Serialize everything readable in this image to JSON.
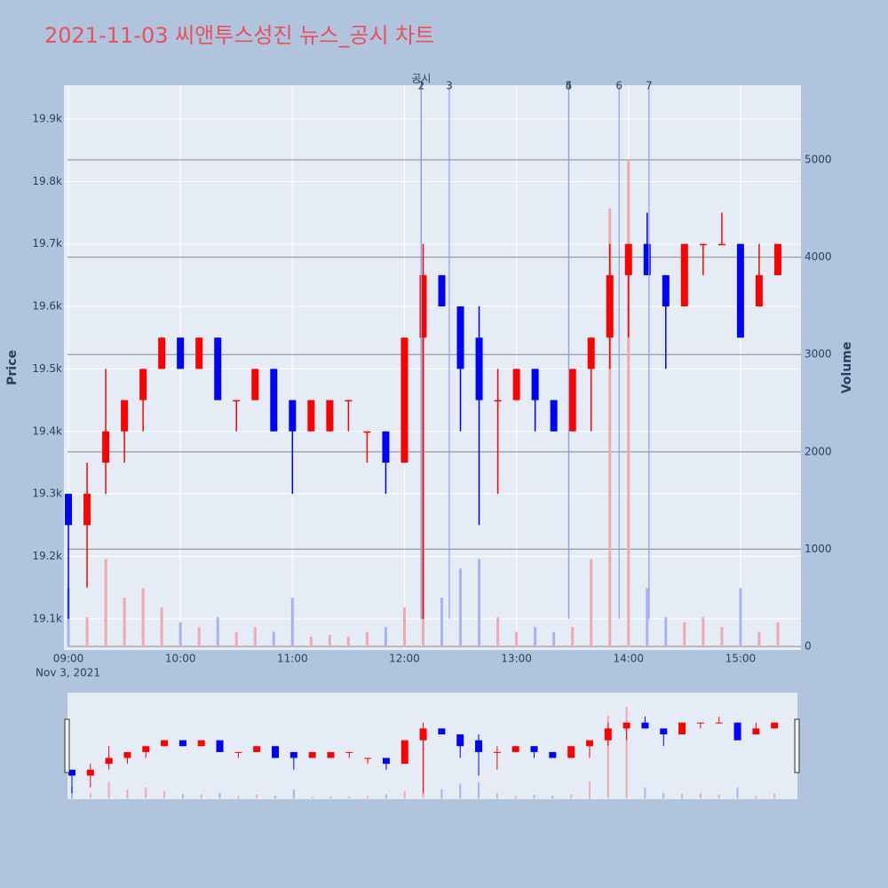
{
  "chart_data": {
    "type": "candlestick",
    "title": "2021-11-03 씨앤투스성진 뉴스_공시 차트",
    "y_title": "Price",
    "y2_title": "Volume",
    "x": [
      "2021-11-03T09:00",
      "2021-11-03T09:10",
      "2021-11-03T09:20",
      "2021-11-03T09:30",
      "2021-11-03T09:40",
      "2021-11-03T09:50",
      "2021-11-03T10:00",
      "2021-11-03T10:10",
      "2021-11-03T10:20",
      "2021-11-03T10:30",
      "2021-11-03T10:40",
      "2021-11-03T10:50",
      "2021-11-03T11:00",
      "2021-11-03T11:10",
      "2021-11-03T11:20",
      "2021-11-03T11:30",
      "2021-11-03T11:40",
      "2021-11-03T11:50",
      "2021-11-03T12:00",
      "2021-11-03T12:10",
      "2021-11-03T12:20",
      "2021-11-03T12:30",
      "2021-11-03T12:40",
      "2021-11-03T12:50",
      "2021-11-03T13:00",
      "2021-11-03T13:10",
      "2021-11-03T13:20",
      "2021-11-03T13:30",
      "2021-11-03T13:40",
      "2021-11-03T13:50",
      "2021-11-03T14:00",
      "2021-11-03T14:10",
      "2021-11-03T14:20",
      "2021-11-03T14:30",
      "2021-11-03T14:40",
      "2021-11-03T14:50",
      "2021-11-03T15:00",
      "2021-11-03T15:10",
      "2021-11-03T15:20"
    ],
    "open": [
      19300,
      19250,
      19350,
      19400,
      19450,
      19500,
      19550,
      19500,
      19550,
      19450,
      19450,
      19500,
      19450,
      19400,
      19400,
      19450,
      19400,
      19400,
      19350,
      19550,
      19650,
      19600,
      19550,
      19450,
      19450,
      19500,
      19450,
      19400,
      19500,
      19550,
      19650,
      19700,
      19650,
      19600,
      19700,
      19700,
      19700,
      19600,
      19650
    ],
    "high": [
      19300,
      19350,
      19500,
      19450,
      19500,
      19550,
      19550,
      19550,
      19550,
      19450,
      19500,
      19500,
      19450,
      19450,
      19450,
      19450,
      19400,
      19400,
      19550,
      19700,
      19650,
      19600,
      19600,
      19500,
      19500,
      19500,
      19450,
      19500,
      19550,
      19700,
      19700,
      19750,
      19650,
      19700,
      19700,
      19750,
      19700,
      19700,
      19700
    ],
    "low": [
      19100,
      19150,
      19300,
      19350,
      19400,
      19500,
      19500,
      19500,
      19450,
      19400,
      19450,
      19400,
      19300,
      19400,
      19400,
      19400,
      19350,
      19300,
      19350,
      19100,
      19600,
      19400,
      19250,
      19300,
      19450,
      19400,
      19400,
      19400,
      19400,
      19500,
      19550,
      19650,
      19500,
      19600,
      19650,
      19700,
      19550,
      19600,
      19650
    ],
    "close": [
      19250,
      19300,
      19400,
      19450,
      19500,
      19550,
      19500,
      19550,
      19450,
      19450,
      19500,
      19400,
      19400,
      19450,
      19450,
      19450,
      19400,
      19350,
      19550,
      19650,
      19600,
      19500,
      19450,
      19450,
      19500,
      19450,
      19400,
      19500,
      19550,
      19650,
      19700,
      19650,
      19600,
      19700,
      19700,
      19700,
      19550,
      19650,
      19700
    ],
    "volume": [
      600,
      300,
      900,
      500,
      600,
      400,
      250,
      200,
      300,
      150,
      200,
      150,
      500,
      100,
      120,
      100,
      150,
      200,
      400,
      3800,
      500,
      800,
      900,
      300,
      150,
      200,
      150,
      200,
      900,
      4500,
      5000,
      600,
      300,
      250,
      300,
      200,
      600,
      150,
      250
    ],
    "increasing_color": "#ff0000",
    "decreasing_color": "#0000ff",
    "volume_increasing_color": "#f2a8b0",
    "volume_decreasing_color": "#a8b4f0",
    "xlim": [
      "2021-11-03T08:57:36",
      "2021-11-03T15:32:24"
    ],
    "xticks": [
      {
        "value": "2021-11-03T09:00",
        "label": "09:00"
      },
      {
        "value": "2021-11-03T10:00",
        "label": "10:00"
      },
      {
        "value": "2021-11-03T11:00",
        "label": "11:00"
      },
      {
        "value": "2021-11-03T12:00",
        "label": "12:00"
      },
      {
        "value": "2021-11-03T13:00",
        "label": "13:00"
      },
      {
        "value": "2021-11-03T14:00",
        "label": "14:00"
      },
      {
        "value": "2021-11-03T15:00",
        "label": "15:00"
      }
    ],
    "x_date_label": "Nov 3, 2021",
    "ylim": [
      19050,
      19954
    ],
    "yticks": [
      {
        "value": 19100,
        "label": "19.1k"
      },
      {
        "value": 19200,
        "label": "19.2k"
      },
      {
        "value": 19300,
        "label": "19.3k"
      },
      {
        "value": 19400,
        "label": "19.4k"
      },
      {
        "value": 19500,
        "label": "19.5k"
      },
      {
        "value": 19600,
        "label": "19.6k"
      },
      {
        "value": 19700,
        "label": "19.7k"
      },
      {
        "value": 19800,
        "label": "19.8k"
      },
      {
        "value": 19900,
        "label": "19.9k"
      }
    ],
    "y2lim": [
      -36,
      5766
    ],
    "y2ticks": [
      0,
      1000,
      2000,
      3000,
      4000,
      5000
    ],
    "annotation_title": "공시",
    "annotations": [
      {
        "x": "2021-11-03T12:09",
        "text": "1"
      },
      {
        "x": "2021-11-03T12:09",
        "text": "2"
      },
      {
        "x": "2021-11-03T12:24",
        "text": "3"
      },
      {
        "x": "2021-11-03T13:28",
        "text": "4"
      },
      {
        "x": "2021-11-03T13:28",
        "text": "5"
      },
      {
        "x": "2021-11-03T13:55",
        "text": "6"
      },
      {
        "x": "2021-11-03T14:11",
        "text": "7"
      }
    ]
  }
}
